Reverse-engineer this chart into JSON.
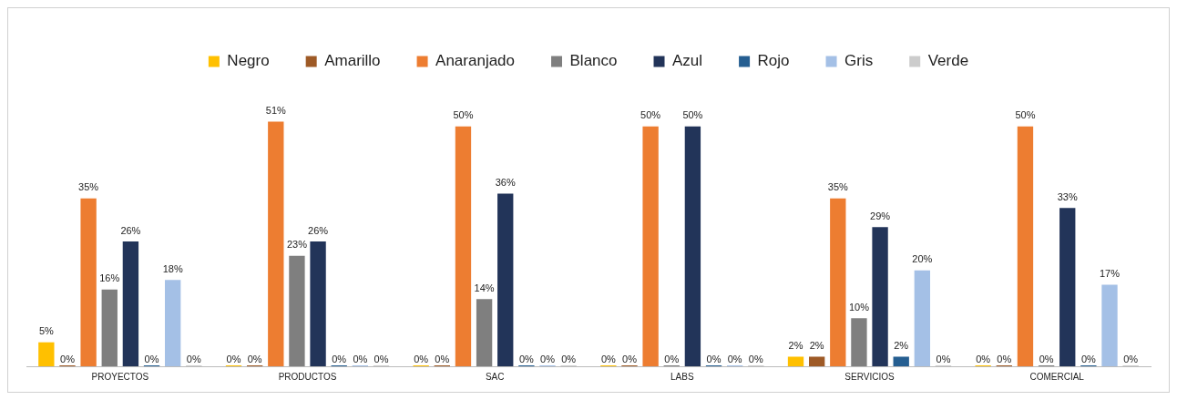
{
  "chart_data": {
    "type": "bar",
    "categories": [
      "PROYECTOS",
      "PRODUCTOS",
      "SAC",
      "LABS",
      "SERVICIOS",
      "COMERCIAL"
    ],
    "series": [
      {
        "name": "Negro",
        "color": "#ffc000",
        "values": [
          5,
          0,
          0,
          0,
          2,
          0
        ],
        "value_labels": [
          "5%",
          "0%",
          "0%",
          "0%",
          "2%",
          "0%"
        ]
      },
      {
        "name": "Amarillo",
        "color": "#9e5a26",
        "values": [
          0,
          0,
          0,
          0,
          2,
          0
        ],
        "value_labels": [
          "0%",
          "0%",
          "0%",
          "0%",
          "2%",
          "0%"
        ]
      },
      {
        "name": "Anaranjado",
        "color": "#ed7d31",
        "values": [
          35,
          51,
          50,
          50,
          35,
          50
        ],
        "value_labels": [
          "35%",
          "51%",
          "50%",
          "50%",
          "35%",
          "50%"
        ]
      },
      {
        "name": "Blanco",
        "color": "#7f7f7f",
        "values": [
          16,
          23,
          14,
          0,
          10,
          0
        ],
        "value_labels": [
          "16%",
          "23%",
          "14%",
          "0%",
          "10%",
          "0%"
        ]
      },
      {
        "name": "Azul",
        "color": "#223459",
        "values": [
          26,
          26,
          36,
          50,
          29,
          33
        ],
        "value_labels": [
          "26%",
          "26%",
          "36%",
          "50%",
          "29%",
          "33%"
        ]
      },
      {
        "name": "Rojo",
        "color": "#255e91",
        "values": [
          0,
          0,
          0,
          0,
          2,
          0
        ],
        "value_labels": [
          "0%",
          "0%",
          "0%",
          "0%",
          "2%",
          "0%"
        ]
      },
      {
        "name": "Gris",
        "color": "#a4c0e6",
        "values": [
          18,
          0,
          0,
          0,
          20,
          17
        ],
        "value_labels": [
          "18%",
          "0%",
          "0%",
          "0%",
          "20%",
          "17%"
        ]
      },
      {
        "name": "Verde",
        "color": "#cccccc",
        "values": [
          0,
          0,
          0,
          0,
          0,
          0
        ],
        "value_labels": [
          "0%",
          "0%",
          "0%",
          "0%",
          "0%",
          "0%"
        ]
      }
    ],
    "legend": "top",
    "grid": false
  }
}
